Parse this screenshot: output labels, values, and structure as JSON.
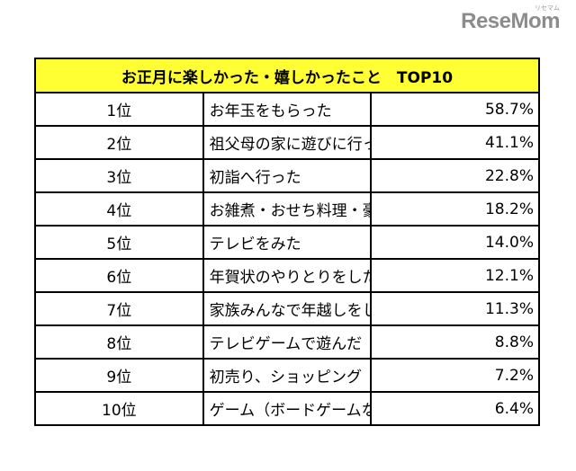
{
  "logo": {
    "text": "ReseMom",
    "sub": "リセマム"
  },
  "chart_data": {
    "type": "table",
    "title": "お正月に楽しかった・嬉しかったこと　TOP10",
    "rows": [
      {
        "rank": "1位",
        "item": "お年玉をもらった",
        "value": "58.7%"
      },
      {
        "rank": "2位",
        "item": "祖父母の家に遊びに行った",
        "value": "41.1%"
      },
      {
        "rank": "3位",
        "item": "初詣へ行った",
        "value": "22.8%"
      },
      {
        "rank": "4位",
        "item": "お雑煮・おせち料理・豪華な料理を食べた",
        "value": "18.2%"
      },
      {
        "rank": "5位",
        "item": "テレビをみた",
        "value": "14.0%"
      },
      {
        "rank": "6位",
        "item": "年賀状のやりとりをした",
        "value": "12.1%"
      },
      {
        "rank": "7位",
        "item": "家族みんなで年越しをした",
        "value": "11.3%"
      },
      {
        "rank": "8位",
        "item": "テレビゲームで遊んだ",
        "value": "8.8%"
      },
      {
        "rank": "9位",
        "item": "初売り、ショッピング（福袋の購入除く）へ行った",
        "value": "7.2%"
      },
      {
        "rank": "10位",
        "item": "ゲーム（ボードゲームなど）で遊んだ",
        "value": "6.4%"
      }
    ]
  }
}
